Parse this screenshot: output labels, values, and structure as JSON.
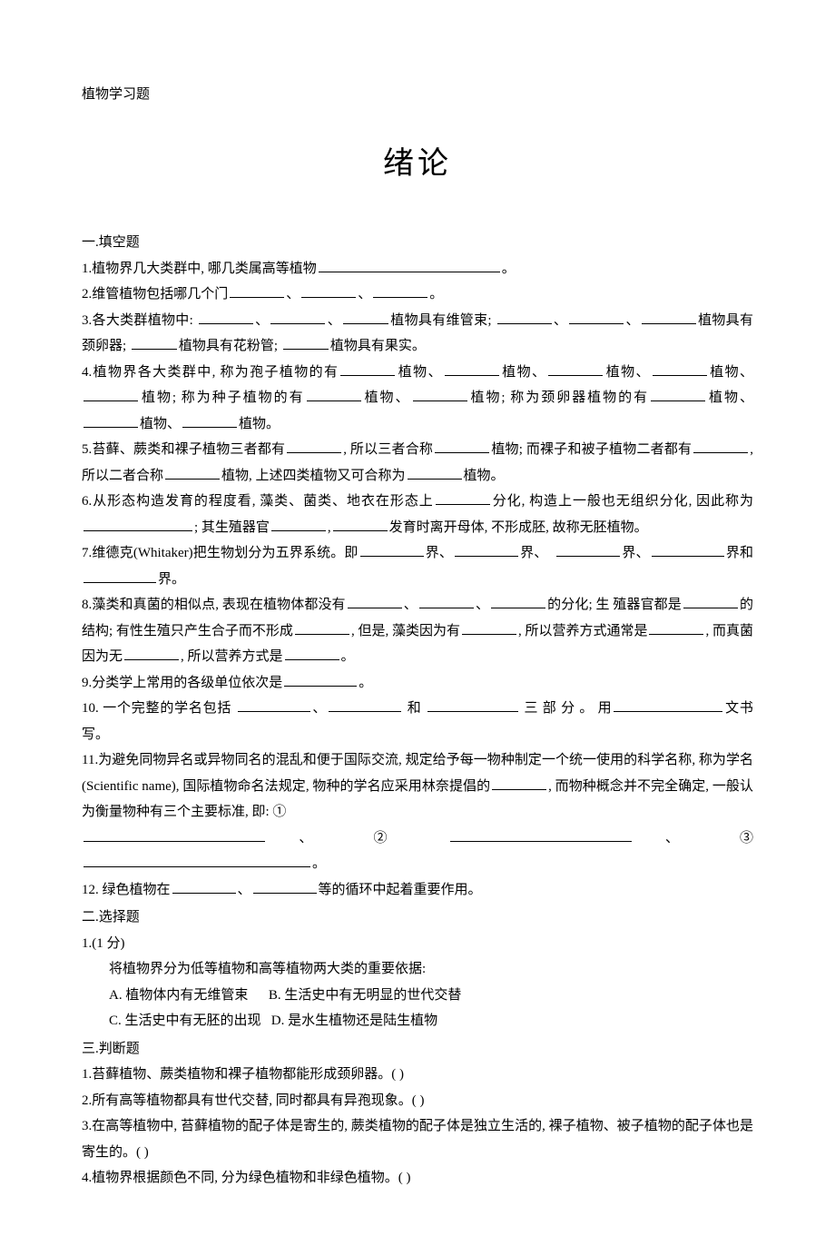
{
  "header": "植物学习题",
  "title": "绪论",
  "section1": {
    "heading": "一.填空题",
    "q1_pre": "1.植物界几大类群中, 哪几类属高等植物",
    "q1_post": "。",
    "q2_pre": "2.维管植物包括哪几个门",
    "q2_sep": "、",
    "q2_post": "。",
    "q3_pre": "3.各大类群植物中:",
    "q3_mid1": "植物具有维管束;",
    "q3_mid2": "植物具有颈卵器;",
    "q3_mid3": "植物具有花粉管;",
    "q3_mid4": "植物具有果实。",
    "q4_pre": "4.植物界各大类群中, 称为孢子植物的有",
    "q4_word_plant": "植物、",
    "q4_mid1": "植物; 称为种子植物的有",
    "q4_mid2": "植物; 称为颈卵器植物的有",
    "q4_post": "植物。",
    "q5_pre": "5.苔藓、蕨类和裸子植物三者都有",
    "q5_mid1": ", 所以三者合称",
    "q5_mid2": "植物; 而裸子和被子植物二者都有",
    "q5_mid3": ", 所以二者合称",
    "q5_mid4": "植物, 上述四类植物又可合称为",
    "q5_post": "植物。",
    "q6_pre": "6.从形态构造发育的程度看, 藻类、菌类、地衣在形态上",
    "q6_mid1": "分化, 构造上一般也无组织分化, 因此称为",
    "q6_mid2": "; 其生殖器官",
    "q6_mid3": ",",
    "q6_mid4": "发育时离开母体, 不形成胚, 故称无胚植物。",
    "q7_pre": "7.维德克(Whitaker)把生物划分为五界系统。即",
    "q7_word_jie": "界、",
    "q7_mid1": "界和",
    "q7_post": "界。",
    "q8_pre": "8.藻类和真菌的相似点, 表现在植物体都没有",
    "q8_mid1": "的分化;   生 殖器官都是",
    "q8_mid2": "的结构; 有性生殖只产生合子而不形成",
    "q8_mid3": ", 但是, 藻类因为有",
    "q8_mid4": ", 所以营养方式通常是",
    "q8_mid5": ", 而真菌因为无",
    "q8_mid6": ", 所以营养方式是",
    "q8_post": "。",
    "q9_pre": "9.分类学上常用的各级单位依次是",
    "q9_post": "。",
    "q10_pre": "10. 一个完整的学名包括",
    "q10_word_and": "和",
    "q10_mid1": "三 部 分 。 用",
    "q10_post": "文书写。",
    "q11_pre": "11.为避免同物异名或异物同名的混乱和便于国际交流, 规定给予每一物种制定一个统一使用的科学名称, 称为学名(Scientific name), 国际植物命名法规定, 物种的学名应采用林奈提倡的",
    "q11_mid1": ", 而物种概念并不完全确定, 一般认为衡量物种有三个主要标准, 即: ①",
    "q11_num2": "②",
    "q11_num3": "③",
    "q11_sep_dun": "、",
    "q11_post": "。",
    "q12_pre": "12. 绿色植物在",
    "q12_post": "等的循环中起着重要作用。"
  },
  "section2": {
    "heading": "二.选择题",
    "q1_num": "1.(1 分)",
    "q1_stem": "将植物界分为低等植物和高等植物两大类的重要依据:",
    "q1_optA": "A.  植物体内有无维管束",
    "q1_optB": "B.  生活史中有无明显的世代交替",
    "q1_optC": "C.  生活史中有无胚的出现",
    "q1_optD": "D.  是水生植物还是陆生植物"
  },
  "section3": {
    "heading": "三.判断题",
    "q1": "1.苔藓植物、蕨类植物和裸子植物都能形成颈卵器。(     )",
    "q2": "2.所有高等植物都具有世代交替, 同时都具有异孢现象。(     )",
    "q3": "3.在高等植物中, 苔藓植物的配子体是寄生的, 蕨类植物的配子体是独立生活的, 裸子植物、被子植物的配子体也是寄生的。(      )",
    "q4": "4.植物界根据颜色不同, 分为绿色植物和非绿色植物。(      )"
  }
}
